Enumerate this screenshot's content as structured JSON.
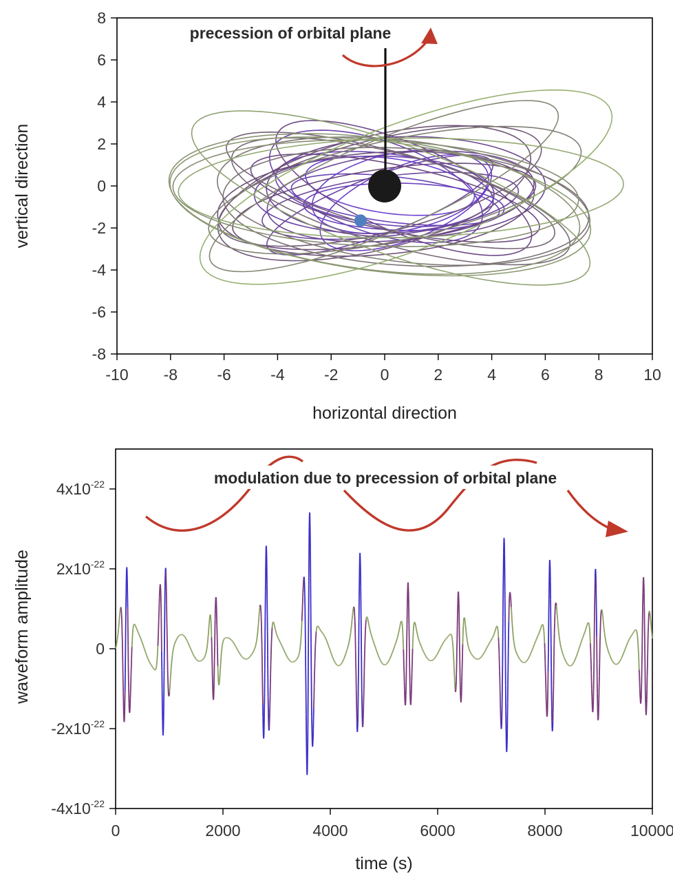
{
  "chart_data": [
    {
      "type": "line",
      "title": "",
      "xlabel": "horizontal direction",
      "ylabel": "vertical direction",
      "xlim": [
        -10,
        10
      ],
      "ylim": [
        -8,
        8
      ],
      "xticks": [
        "-10",
        "-8",
        "-6",
        "-4",
        "-2",
        "0",
        "2",
        "4",
        "6",
        "8",
        "10"
      ],
      "yticks": [
        "8",
        "6",
        "4",
        "2",
        "0",
        "-2",
        "-4",
        "-6",
        "-8"
      ],
      "annotation": "precession of orbital plane",
      "central_body": {
        "x": 0,
        "y": 0
      },
      "orbiting_body": {
        "x": -0.9,
        "y": -1.65
      },
      "orbit_ellipses_center": {
        "x": 0.2,
        "y": -0.5
      },
      "colors": {
        "orbit_start": "#6a3fd0",
        "orbit_mid": "#6b4a78",
        "orbit_end": "#96b070",
        "annotation_arrow": "#c0392b",
        "central_body": "#1a1a1a",
        "orbiting_body": "#4f7fc0"
      },
      "grid": false
    },
    {
      "type": "line",
      "title": "",
      "xlabel": "time (s)",
      "ylabel": "waveform amplitude",
      "xlim": [
        0,
        10000
      ],
      "ylim": [
        -4e-22,
        5e-22
      ],
      "xticks": [
        "0",
        "2000",
        "4000",
        "6000",
        "8000",
        "10000"
      ],
      "yticks": [
        {
          "base": "4x10",
          "exp": "-22",
          "value": 4e-22
        },
        {
          "base": "2x10",
          "exp": "-22",
          "value": 2e-22
        },
        {
          "base": "0",
          "exp": "",
          "value": 0
        },
        {
          "base": "-2x10",
          "exp": "-22",
          "value": -2e-22
        },
        {
          "base": "-4x10",
          "exp": "-22",
          "value": -4e-22
        }
      ],
      "annotation": "modulation due to precession of orbital plane",
      "bursts_at_s": [
        200,
        900,
        1850,
        2800,
        3600,
        4550,
        5450,
        6400,
        7250,
        8100,
        8950,
        9850
      ],
      "peak_amplitude": 4e-22,
      "colors": {
        "high_amplitude": "#3b2fc9",
        "mid": "#7a3a7a",
        "low_amplitude": "#8aa060",
        "annotation_arrow": "#c0392b"
      },
      "grid": false
    }
  ]
}
